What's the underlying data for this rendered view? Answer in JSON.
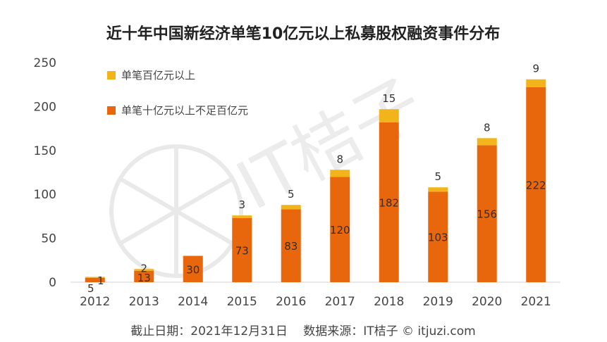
{
  "chart_data": {
    "type": "bar",
    "stacked": true,
    "title": "近十年中国新经济单笔10亿元以上私募股权融资事件分布",
    "categories": [
      "2012",
      "2013",
      "2014",
      "2015",
      "2016",
      "2017",
      "2018",
      "2019",
      "2020",
      "2021"
    ],
    "series": [
      {
        "name": "单笔十亿元以上不足百亿元",
        "color": "#e8670c",
        "values": [
          5,
          13,
          30,
          73,
          83,
          120,
          182,
          103,
          156,
          222
        ]
      },
      {
        "name": "单笔百亿元以上",
        "color": "#f2b41a",
        "values": [
          1,
          2,
          0,
          3,
          5,
          8,
          15,
          5,
          8,
          9
        ]
      }
    ],
    "yticks": [
      "0",
      "50",
      "100",
      "150",
      "200",
      "250"
    ],
    "ylim": [
      0,
      250
    ],
    "legend_position": "top-left",
    "grid": false
  },
  "footer": "截止日期：2021年12月31日　 数据来源：IT桔子 © itjuzi.com"
}
